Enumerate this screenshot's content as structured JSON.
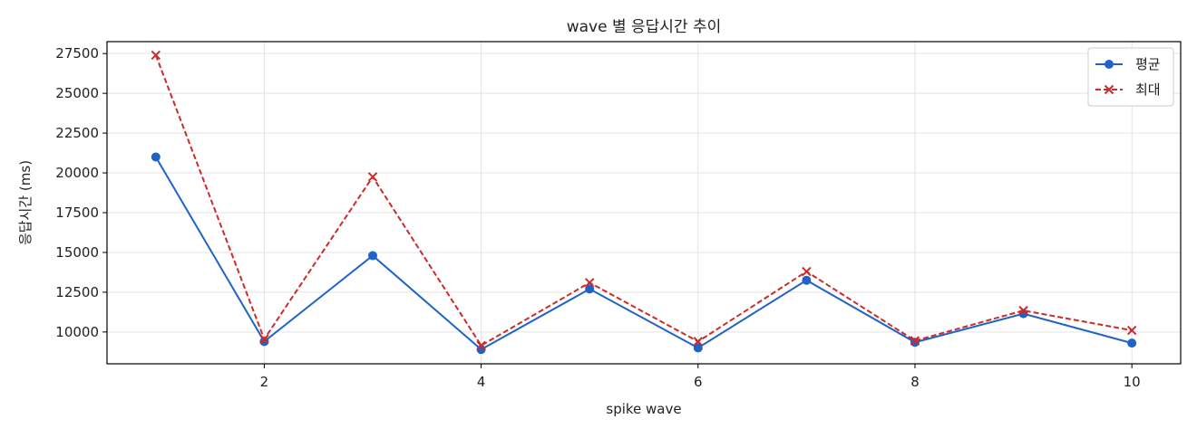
{
  "chart_data": {
    "type": "line",
    "title": "wave 별 응답시간 추이",
    "xlabel": "spike wave",
    "ylabel": "응답시간 (ms)",
    "x": [
      1,
      2,
      3,
      4,
      5,
      6,
      7,
      8,
      9,
      10
    ],
    "xlim": [
      0.55,
      10.45
    ],
    "ylim": [
      8000,
      28250
    ],
    "xticks": [
      2,
      4,
      6,
      8,
      10
    ],
    "yticks": [
      10000,
      12500,
      15000,
      17500,
      20000,
      22500,
      25000,
      27500
    ],
    "grid": true,
    "legend_position": "top-right",
    "series": [
      {
        "name": "평균",
        "color": "#1f63c6",
        "line_style": "solid",
        "marker": "circle",
        "values": [
          21000,
          9400,
          14800,
          8900,
          12700,
          9000,
          13250,
          9350,
          11150,
          9300
        ]
      },
      {
        "name": "최대",
        "color": "#cc2b2b",
        "line_style": "dashed",
        "marker": "x",
        "values": [
          27400,
          9550,
          19750,
          9150,
          13100,
          9400,
          13800,
          9450,
          11350,
          10100
        ]
      }
    ]
  }
}
